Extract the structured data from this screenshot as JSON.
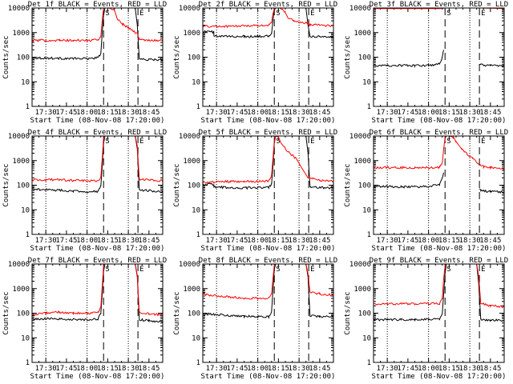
{
  "chart_data": {
    "type": "line",
    "y_scale": "log",
    "ylim": [
      1,
      10000
    ],
    "y_ticks": [
      1,
      10,
      100,
      1000,
      10000
    ],
    "y_tick_labels": [
      "1",
      "10",
      "100",
      "1000",
      "10000"
    ],
    "ylabel": "Counts/sec",
    "xlabel": "Start Time (08-Nov-08 17:20:00)",
    "x_unit": "minutes after 17:20",
    "xlim": [
      0,
      95
    ],
    "x_ticks": [
      10,
      25,
      40,
      55,
      70,
      85
    ],
    "x_tick_labels": [
      "17:30",
      "17:45",
      "18:00",
      "18:15",
      "18:30",
      "18:45"
    ],
    "dotted_lines_x": [
      10,
      40,
      70
    ],
    "dashed_lines_x": [
      52,
      77
    ],
    "marker_labels": [
      "S",
      "E"
    ],
    "series_colors": {
      "events": "#000000",
      "lld": "#ff0000"
    },
    "panels": [
      {
        "title": "Det 1f BLACK = Events, RED = LLD",
        "series": [
          {
            "name": "Events",
            "color": "#000000",
            "x": [
              0,
              10,
              20,
              30,
              40,
              48,
              50,
              51,
              52,
              53,
              56,
              60,
              62,
              75,
              76.5,
              78,
              85,
              95
            ],
            "y": [
              95,
              92,
              90,
              88,
              88,
              95,
              140,
              1000,
              5000,
              10000,
              10000,
              10000,
              10000,
              10000,
              2000,
              85,
              80,
              78
            ]
          },
          {
            "name": "LLD",
            "color": "#ff0000",
            "x": [
              0,
              10,
              20,
              30,
              40,
              48,
              50,
              51,
              52,
              53,
              56,
              60,
              62,
              66,
              70,
              76.5,
              78,
              85,
              95
            ],
            "y": [
              480,
              480,
              480,
              480,
              480,
              500,
              700,
              3000,
              10000,
              10000,
              10000,
              8000,
              3500,
              2200,
              1600,
              900,
              520,
              500,
              470
            ]
          }
        ]
      },
      {
        "title": "Det 2f BLACK = Events, RED = LLD",
        "series": [
          {
            "name": "Events",
            "color": "#000000",
            "x": [
              0,
              5,
              8,
              8.1,
              20,
              30,
              40,
              48,
              50,
              51,
              52,
              53,
              56,
              62,
              70,
              75,
              76.5,
              78,
              85,
              95
            ],
            "y": [
              1100,
              1100,
              1050,
              700,
              700,
              700,
              700,
              720,
              900,
              3000,
              9000,
              10000,
              10000,
              10000,
              10000,
              10000,
              2000,
              700,
              700,
              650
            ]
          },
          {
            "name": "LLD",
            "color": "#ff0000",
            "x": [
              0,
              10,
              20,
              30,
              40,
              48,
              50,
              51,
              52,
              53,
              56,
              60,
              62,
              66,
              70,
              76.5,
              78,
              85,
              95
            ],
            "y": [
              1800,
              1800,
              1800,
              1900,
              1950,
              2000,
              2600,
              6000,
              10000,
              10000,
              10000,
              7000,
              4000,
              3000,
              2600,
              2400,
              2100,
              2000,
              1900
            ]
          }
        ]
      },
      {
        "title": "Det 3f BLACK = Events, RED = LLD",
        "series": [
          {
            "name": "Events",
            "color": "#000000",
            "x": [
              0,
              10,
              20,
              30,
              40,
              45,
              48,
              49.5,
              50.5,
              51,
              51.1,
              76.9,
              77,
              78,
              85,
              95
            ],
            "y": [
              45,
              45,
              47,
              45,
              47,
              48,
              55,
              75,
              140,
              180,
              null,
              null,
              55,
              48,
              45,
              43
            ]
          },
          {
            "name": "LLD",
            "color": "#ff0000",
            "x": [
              0,
              10,
              20,
              30,
              40,
              48,
              50,
              52,
              60,
              70,
              77,
              85,
              95
            ],
            "y": [
              9500,
              9500,
              9500,
              9500,
              9500,
              9500,
              9700,
              10000,
              10000,
              10000,
              10000,
              9800,
              9500
            ]
          }
        ]
      },
      {
        "title": "Det 4f BLACK = Events, RED = LLD",
        "series": [
          {
            "name": "Events",
            "color": "#000000",
            "x": [
              0,
              10,
              20,
              30,
              40,
              48,
              50,
              51,
              52,
              53,
              56,
              60,
              62,
              75,
              76.5,
              78,
              85,
              95
            ],
            "y": [
              70,
              65,
              62,
              58,
              55,
              55,
              90,
              600,
              5000,
              10000,
              10000,
              10000,
              10000,
              10000,
              3000,
              65,
              60,
              55
            ]
          },
          {
            "name": "LLD",
            "color": "#ff0000",
            "x": [
              0,
              10,
              20,
              30,
              40,
              48,
              50,
              51,
              52,
              53,
              56,
              62,
              70,
              75,
              76.5,
              78,
              85,
              95
            ],
            "y": [
              160,
              165,
              165,
              155,
              150,
              150,
              220,
              1200,
              8000,
              10000,
              10000,
              10000,
              10000,
              10000,
              4000,
              180,
              160,
              150
            ]
          }
        ]
      },
      {
        "title": "Det 5f BLACK = Events, RED = LLD",
        "series": [
          {
            "name": "Events",
            "color": "#000000",
            "x": [
              0,
              8,
              8.1,
              20,
              30,
              40,
              48,
              50,
              51,
              52,
              53,
              56,
              62,
              70,
              75,
              76.5,
              78,
              85,
              95
            ],
            "y": [
              110,
              108,
              85,
              80,
              78,
              78,
              80,
              110,
              600,
              5000,
              10000,
              10000,
              10000,
              10000,
              10000,
              2000,
              85,
              80,
              78
            ]
          },
          {
            "name": "LLD",
            "color": "#ff0000",
            "x": [
              0,
              8,
              20,
              30,
              40,
              48,
              50,
              51,
              52,
              53,
              55,
              57,
              60,
              64,
              68,
              72,
              76,
              80,
              85,
              95
            ],
            "y": [
              130,
              135,
              140,
              140,
              140,
              145,
              250,
              1200,
              6000,
              10000,
              9000,
              5000,
              3000,
              1800,
              1200,
              500,
              220,
              180,
              160,
              140
            ]
          }
        ]
      },
      {
        "title": "Det 6f BLACK = Events, RED = LLD",
        "series": [
          {
            "name": "Events",
            "color": "#000000",
            "x": [
              0,
              10,
              20,
              30,
              40,
              48,
              50,
              51,
              51.1,
              76.9,
              77,
              78,
              85,
              95
            ],
            "y": [
              90,
              88,
              85,
              85,
              88,
              110,
              200,
              350,
              null,
              null,
              70,
              60,
              55,
              52
            ]
          },
          {
            "name": "LLD",
            "color": "#ff0000",
            "x": [
              0,
              10,
              20,
              30,
              40,
              48,
              50,
              51,
              52,
              53,
              55,
              58,
              60,
              64,
              68,
              72,
              76,
              80,
              85,
              95
            ],
            "y": [
              520,
              520,
              520,
              520,
              520,
              540,
              800,
              3000,
              8000,
              10000,
              10000,
              9000,
              6000,
              3000,
              1800,
              1200,
              800,
              560,
              520,
              450
            ]
          }
        ]
      },
      {
        "title": "Det 7f BLACK = Events, RED = LLD",
        "series": [
          {
            "name": "Events",
            "color": "#000000",
            "x": [
              0,
              10,
              20,
              30,
              40,
              48,
              50,
              51,
              52,
              53,
              56,
              62,
              70,
              75,
              76.5,
              78,
              85,
              95
            ],
            "y": [
              55,
              60,
              58,
              55,
              55,
              58,
              100,
              600,
              5000,
              10000,
              10000,
              10000,
              10000,
              10000,
              3000,
              55,
              50,
              45
            ]
          },
          {
            "name": "LLD",
            "color": "#ff0000",
            "x": [
              0,
              10,
              20,
              30,
              40,
              48,
              50,
              51,
              52,
              53,
              56,
              62,
              70,
              75,
              76.5,
              78,
              85,
              95
            ],
            "y": [
              90,
              100,
              110,
              100,
              100,
              105,
              180,
              1200,
              8000,
              10000,
              10000,
              10000,
              10000,
              10000,
              3500,
              110,
              95,
              85
            ]
          }
        ]
      },
      {
        "title": "Det 8f BLACK = Events, RED = LLD",
        "series": [
          {
            "name": "Events",
            "color": "#000000",
            "x": [
              0,
              10,
              20,
              30,
              40,
              48,
              50,
              51,
              52,
              53,
              56,
              62,
              70,
              75,
              76.5,
              78,
              85,
              95
            ],
            "y": [
              95,
              88,
              80,
              75,
              72,
              70,
              120,
              800,
              6000,
              10000,
              10000,
              10000,
              10000,
              10000,
              3000,
              80,
              75,
              70
            ]
          },
          {
            "name": "LLD",
            "color": "#ff0000",
            "x": [
              0,
              10,
              20,
              30,
              40,
              48,
              50,
              51,
              52,
              53,
              56,
              62,
              70,
              75,
              76.5,
              78,
              85,
              95
            ],
            "y": [
              600,
              520,
              450,
              420,
              400,
              400,
              600,
              2500,
              9000,
              10000,
              10000,
              10000,
              10000,
              10000,
              4000,
              700,
              600,
              550
            ]
          }
        ]
      },
      {
        "title": "Det 9f BLACK = Events, RED = LLD",
        "series": [
          {
            "name": "Events",
            "color": "#000000",
            "x": [
              0,
              10,
              20,
              30,
              40,
              48,
              50,
              51,
              52,
              53,
              56,
              62,
              70,
              75,
              76.5,
              78,
              85,
              95
            ],
            "y": [
              55,
              55,
              55,
              55,
              56,
              58,
              100,
              600,
              4000,
              10000,
              10000,
              10000,
              10000,
              10000,
              1500,
              55,
              52,
              50
            ]
          },
          {
            "name": "LLD",
            "color": "#ff0000",
            "x": [
              0,
              10,
              20,
              30,
              40,
              48,
              50,
              51,
              52,
              53,
              56,
              62,
              70,
              75,
              76.5,
              78,
              80,
              85,
              95
            ],
            "y": [
              240,
              240,
              240,
              240,
              245,
              250,
              380,
              2500,
              8000,
              10000,
              10000,
              10000,
              10000,
              10000,
              3000,
              250,
              240,
              200,
              180
            ]
          }
        ]
      }
    ]
  }
}
